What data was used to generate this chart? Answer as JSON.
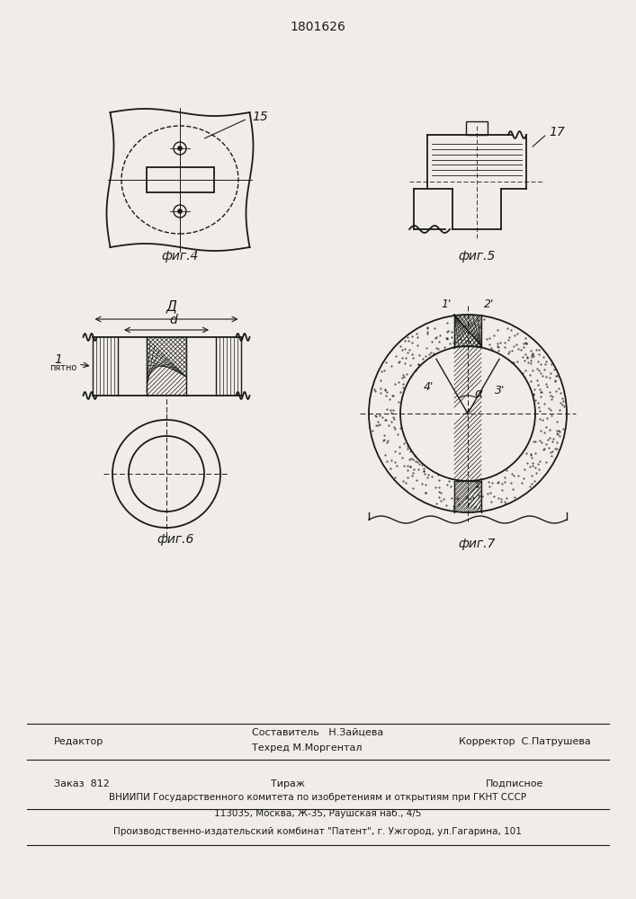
{
  "title": "1801626",
  "fig4_label": "фиг.4",
  "fig5_label": "фиг.5",
  "fig6_label": "фиг.6",
  "fig7_label": "фиг.7",
  "label_15": "15",
  "label_17": "17",
  "label_1": "1",
  "label_notch": "пятно",
  "label_D": "Д",
  "label_d": "d",
  "label_1p": "1'",
  "label_2p": "2'",
  "label_3p": "3'",
  "label_4p": "4'",
  "label_alpha": "α",
  "footer_line1": "Составитель   Н.Зайцева",
  "footer_line2": "Техред М.Моргентал",
  "footer_editor": "Редактор",
  "footer_corrector": "Корректор  С.Патрушева",
  "footer_order": "Заказ  812",
  "footer_tirazh": "Тираж",
  "footer_podpisnoe": "Подписное",
  "footer_vniip": "ВНИИПИ Государственного комитета по изобретениям и открытиям при ГКНТ СССР",
  "footer_address": "113035, Москва, Ж-35, Раушская наб., 4/5",
  "footer_factory": "Производственно-издательский комбинат \"Патент\", г. Ужгород, ул.Гагарина, 101",
  "bg_color": "#f0ede8",
  "line_color": "#1a1a1a"
}
